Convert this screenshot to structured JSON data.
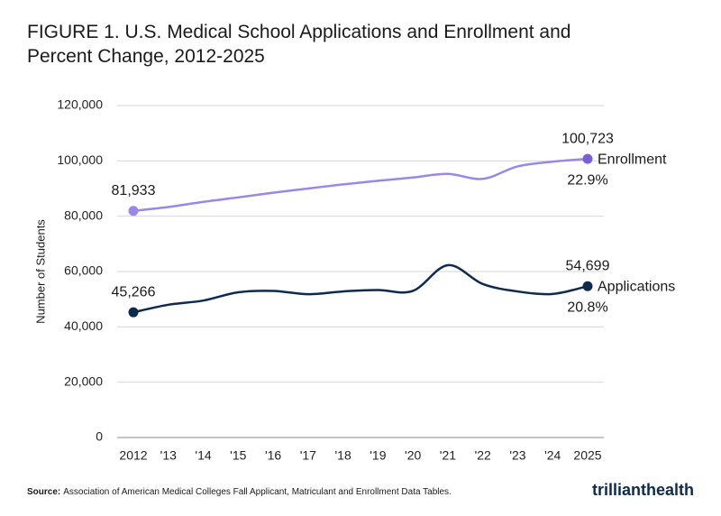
{
  "chart_data": {
    "type": "line",
    "title": "FIGURE 1. U.S. Medical School Applications and Enrollment and Percent Change, 2012-2025",
    "y_label": "Number of Students",
    "categories": [
      "2012",
      "'13",
      "'14",
      "'15",
      "'16",
      "'17",
      "'18",
      "'19",
      "'20",
      "'21",
      "'22",
      "'23",
      "'24",
      "2025"
    ],
    "series": [
      {
        "name": "Enrollment",
        "color": "#9b87e6",
        "label_color": "#7b5fd6",
        "values": [
          81933,
          83300,
          85200,
          86800,
          88500,
          90000,
          91500,
          92800,
          94000,
          95300,
          93500,
          98000,
          99700,
          100723
        ],
        "value_labels": [
          "81,933",
          null,
          null,
          null,
          null,
          null,
          null,
          null,
          null,
          null,
          null,
          null,
          null,
          "100,723"
        ],
        "change_label": "22.9%"
      },
      {
        "name": "Applications",
        "color": "#0d2a4f",
        "label_color": "#0d2a4f",
        "values": [
          45266,
          48000,
          49500,
          52500,
          53000,
          51800,
          52800,
          53300,
          53000,
          62300,
          55500,
          52800,
          51900,
          54699
        ],
        "value_labels": [
          "45,266",
          null,
          null,
          null,
          null,
          null,
          null,
          null,
          null,
          null,
          null,
          null,
          null,
          "54,699"
        ],
        "change_label": "20.8%"
      }
    ],
    "ylim": [
      0,
      120000
    ],
    "yticks": [
      0,
      {
        "value": 20000,
        "label": "20,000"
      },
      {
        "value": 40000,
        "label": "40,000"
      },
      {
        "value": 60000,
        "label": "60,000"
      },
      {
        "value": 80000,
        "label": "80,000"
      },
      {
        "value": 100000,
        "label": "100,000"
      },
      {
        "value": 120000,
        "label": "120,000"
      }
    ],
    "grid": true,
    "source_label": "Source:",
    "source": "Association of American Medical Colleges Fall Applicant, Matriculant and Enrollment Data Tables.",
    "brand": [
      "trilliant",
      "health"
    ]
  }
}
